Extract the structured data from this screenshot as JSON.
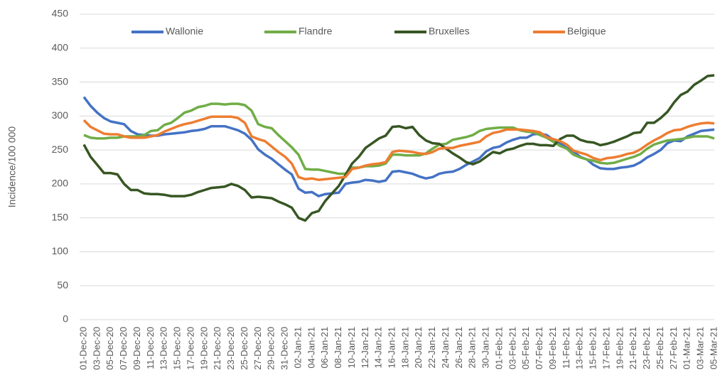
{
  "chart_data": {
    "type": "line",
    "ylabel": "Incidence/100 000",
    "categories": [
      "01-Dec-20",
      null,
      "03-Dec-20",
      null,
      "05-Dec-20",
      null,
      "07-Dec-20",
      null,
      "09-Dec-20",
      null,
      "11-Dec-20",
      null,
      "13-Dec-20",
      null,
      "15-Dec-20",
      null,
      "17-Dec-20",
      null,
      "19-Dec-20",
      null,
      "21-Dec-20",
      null,
      "23-Dec-20",
      null,
      "25-Dec-20",
      null,
      "27-Dec-20",
      null,
      "29-Dec-20",
      null,
      "31-Dec-20",
      null,
      "02-Jan-21",
      null,
      "04-Jan-21",
      null,
      "06-Jan-21",
      null,
      "08-Jan-21",
      null,
      "10-Jan-21",
      null,
      "12-Jan-21",
      null,
      "14-Jan-21",
      null,
      "16-Jan-21",
      null,
      "18-Jan-21",
      null,
      "20-Jan-21",
      null,
      "22-Jan-21",
      null,
      "24-Jan-21",
      null,
      "26-Jan-21",
      null,
      "28-Jan-21",
      null,
      "30-Jan-21",
      null,
      "01-Feb-21",
      null,
      "03-Feb-21",
      null,
      "05-Feb-21",
      null,
      "07-Feb-21",
      null,
      "09-Feb-21",
      null,
      "11-Feb-21",
      null,
      "13-Feb-21",
      null,
      "15-Feb-21",
      null,
      "17-Feb-21",
      null,
      "19-Feb-21",
      null,
      "21-Feb-21",
      null,
      "23-Feb-21",
      null,
      "25-Feb-21",
      null,
      "27-Feb-21",
      null,
      "01-Mar-21",
      null,
      "03-Mar-21",
      null,
      "05-Mar-21"
    ],
    "series": [
      {
        "name": "Wallonie",
        "color": "#4472c4",
        "values": [
          328,
          315,
          305,
          297,
          292,
          290,
          288,
          278,
          273,
          272,
          271,
          271,
          273,
          274,
          275,
          276,
          278,
          279,
          281,
          285,
          285,
          285,
          282,
          279,
          274,
          265,
          251,
          243,
          237,
          229,
          221,
          214,
          193,
          187,
          188,
          182,
          185,
          186,
          187,
          200,
          202,
          203,
          206,
          205,
          203,
          205,
          218,
          219,
          217,
          215,
          211,
          208,
          210,
          215,
          217,
          218,
          222,
          228,
          233,
          238,
          248,
          253,
          255,
          261,
          265,
          268,
          268,
          273,
          274,
          272,
          265,
          260,
          253,
          248,
          240,
          236,
          228,
          223,
          222,
          222,
          224,
          225,
          227,
          232,
          239,
          244,
          250,
          260,
          264,
          263,
          270,
          274,
          278,
          279,
          280
        ]
      },
      {
        "name": "Flandre",
        "color": "#70ad47",
        "values": [
          272,
          268,
          267,
          267,
          268,
          268,
          270,
          270,
          270,
          272,
          278,
          279,
          287,
          290,
          297,
          305,
          308,
          313,
          315,
          318,
          318,
          317,
          318,
          318,
          316,
          308,
          288,
          284,
          282,
          272,
          263,
          254,
          243,
          222,
          221,
          221,
          219,
          217,
          215,
          215,
          224,
          224,
          226,
          226,
          227,
          230,
          243,
          243,
          242,
          242,
          242,
          245,
          252,
          258,
          259,
          265,
          267,
          269,
          272,
          278,
          281,
          282,
          283,
          283,
          283,
          279,
          277,
          276,
          272,
          268,
          262,
          256,
          252,
          243,
          239,
          236,
          234,
          231,
          230,
          231,
          234,
          237,
          240,
          244,
          252,
          258,
          261,
          264,
          265,
          266,
          268,
          270,
          270,
          270,
          267
        ]
      },
      {
        "name": "Bruxelles",
        "color": "#375623",
        "values": [
          258,
          240,
          228,
          216,
          216,
          214,
          200,
          191,
          191,
          186,
          185,
          185,
          184,
          182,
          182,
          182,
          184,
          188,
          191,
          194,
          195,
          196,
          200,
          197,
          191,
          180,
          181,
          180,
          179,
          174,
          170,
          165,
          150,
          146,
          157,
          160,
          175,
          186,
          197,
          213,
          230,
          240,
          253,
          260,
          267,
          271,
          284,
          285,
          282,
          284,
          272,
          264,
          260,
          259,
          252,
          245,
          239,
          232,
          229,
          233,
          240,
          247,
          245,
          250,
          252,
          256,
          259,
          259,
          257,
          257,
          256,
          266,
          271,
          271,
          265,
          262,
          261,
          257,
          259,
          262,
          266,
          270,
          275,
          276,
          290,
          290,
          297,
          306,
          320,
          331,
          336,
          346,
          352,
          359,
          360
        ]
      },
      {
        "name": "Belgique",
        "color": "#ed7d31",
        "values": [
          294,
          284,
          279,
          274,
          273,
          273,
          270,
          268,
          268,
          268,
          270,
          272,
          277,
          281,
          285,
          288,
          290,
          293,
          296,
          299,
          299,
          299,
          299,
          297,
          290,
          270,
          266,
          263,
          255,
          247,
          240,
          230,
          210,
          207,
          208,
          206,
          207,
          208,
          209,
          210,
          222,
          224,
          227,
          229,
          230,
          232,
          247,
          249,
          248,
          247,
          245,
          244,
          247,
          252,
          253,
          253,
          256,
          258,
          260,
          262,
          270,
          275,
          277,
          280,
          280,
          280,
          279,
          278,
          276,
          269,
          266,
          263,
          258,
          249,
          246,
          243,
          238,
          235,
          238,
          239,
          241,
          244,
          246,
          251,
          258,
          264,
          269,
          275,
          279,
          280,
          284,
          287,
          289,
          290,
          289
        ]
      }
    ],
    "ylim": [
      0,
      450
    ],
    "yticks": [
      0,
      50,
      100,
      150,
      200,
      250,
      300,
      350,
      400,
      450
    ],
    "grid": true,
    "legend": "top"
  }
}
